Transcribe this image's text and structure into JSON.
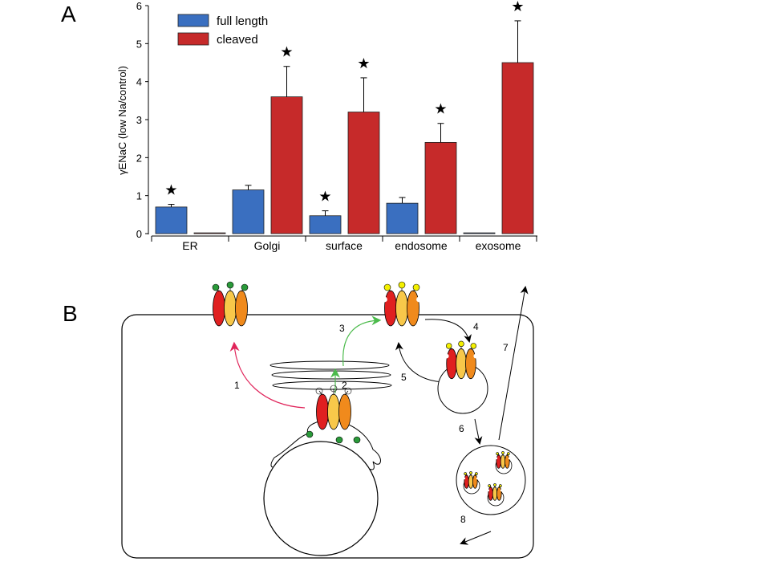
{
  "panel_labels": {
    "a": "A",
    "b": "B"
  },
  "chart_data": {
    "type": "bar",
    "title": "",
    "xlabel": "",
    "ylabel": "γENaC  (low Na/control)",
    "ylim": [
      0,
      6
    ],
    "yticks": [
      "0",
      "1",
      "2",
      "3",
      "4",
      "5",
      "6"
    ],
    "categories": [
      "ER",
      "Golgi",
      "surface",
      "endosome",
      "exosome"
    ],
    "legend_position": "top-left",
    "series": [
      {
        "name": "full length",
        "color": "#3a6fc0",
        "values": [
          0.7,
          1.15,
          0.47,
          0.8,
          0.02
        ],
        "error_upper": [
          0.77,
          1.27,
          0.6,
          0.95,
          null
        ],
        "significant": [
          true,
          false,
          true,
          false,
          false
        ]
      },
      {
        "name": "cleaved",
        "color": "#c62a2a",
        "values": [
          0.02,
          3.6,
          3.2,
          2.4,
          4.5
        ],
        "error_upper": [
          null,
          4.4,
          4.1,
          2.9,
          5.6
        ],
        "significant": [
          false,
          true,
          true,
          true,
          true
        ]
      }
    ],
    "significance_marker": "★"
  },
  "diagram": {
    "step_labels": [
      "1",
      "2",
      "3",
      "4",
      "5",
      "6",
      "7",
      "8"
    ],
    "colors": {
      "red": "#e02020",
      "yellow": "#f8c84a",
      "orange": "#f08a1c",
      "green_glycan": "#2a9a3a",
      "yellow_glycan": "#f4f000",
      "path1": "#e0245a",
      "path23": "#4cbb4c"
    }
  }
}
